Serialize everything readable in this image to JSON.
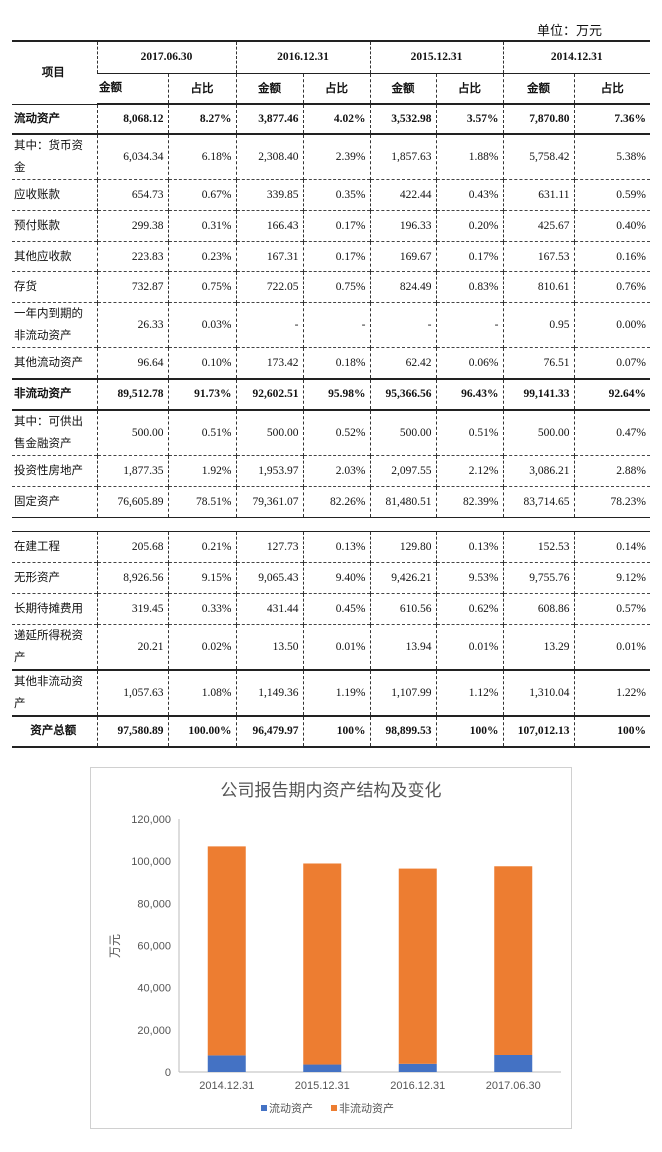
{
  "unit_label": "单位：万元",
  "table": {
    "item_header": "项目",
    "periods": [
      "2017.06.30",
      "2016.12.31",
      "2015.12.31",
      "2014.12.31"
    ],
    "sub_headers": [
      "金额",
      "占比"
    ],
    "rows": [
      {
        "label": "流动资产",
        "bold": true,
        "cells": [
          "8,068.12",
          "8.27%",
          "3,877.46",
          "4.02%",
          "3,532.98",
          "3.57%",
          "7,870.80",
          "7.36%"
        ]
      },
      {
        "label": "其中：货币资金",
        "cells": [
          "6,034.34",
          "6.18%",
          "2,308.40",
          "2.39%",
          "1,857.63",
          "1.88%",
          "5,758.42",
          "5.38%"
        ]
      },
      {
        "label": "应收账款",
        "cells": [
          "654.73",
          "0.67%",
          "339.85",
          "0.35%",
          "422.44",
          "0.43%",
          "631.11",
          "0.59%"
        ]
      },
      {
        "label": "预付账款",
        "cells": [
          "299.38",
          "0.31%",
          "166.43",
          "0.17%",
          "196.33",
          "0.20%",
          "425.67",
          "0.40%"
        ]
      },
      {
        "label": "其他应收款",
        "cells": [
          "223.83",
          "0.23%",
          "167.31",
          "0.17%",
          "169.67",
          "0.17%",
          "167.53",
          "0.16%"
        ]
      },
      {
        "label": "存货",
        "cells": [
          "732.87",
          "0.75%",
          "722.05",
          "0.75%",
          "824.49",
          "0.83%",
          "810.61",
          "0.76%"
        ]
      },
      {
        "label": "一年内到期的非流动资产",
        "cells": [
          "26.33",
          "0.03%",
          "-",
          "-",
          "-",
          "-",
          "0.95",
          "0.00%"
        ]
      },
      {
        "label": "其他流动资产",
        "cells": [
          "96.64",
          "0.10%",
          "173.42",
          "0.18%",
          "62.42",
          "0.06%",
          "76.51",
          "0.07%"
        ]
      },
      {
        "label": "非流动资产",
        "bold": true,
        "cells": [
          "89,512.78",
          "91.73%",
          "92,602.51",
          "95.98%",
          "95,366.56",
          "96.43%",
          "99,141.33",
          "92.64%"
        ]
      },
      {
        "label": "其中：可供出售金融资产",
        "cells": [
          "500.00",
          "0.51%",
          "500.00",
          "0.52%",
          "500.00",
          "0.51%",
          "500.00",
          "0.47%"
        ]
      },
      {
        "label": "投资性房地产",
        "cells": [
          "1,877.35",
          "1.92%",
          "1,953.97",
          "2.03%",
          "2,097.55",
          "2.12%",
          "3,086.21",
          "2.88%"
        ]
      },
      {
        "label": "固定资产",
        "cells": [
          "76,605.89",
          "78.51%",
          "79,361.07",
          "82.26%",
          "81,480.51",
          "82.39%",
          "83,714.65",
          "78.23%"
        ]
      },
      {
        "label": "在建工程",
        "cells": [
          "205.68",
          "0.21%",
          "127.73",
          "0.13%",
          "129.80",
          "0.13%",
          "152.53",
          "0.14%"
        ]
      },
      {
        "label": "无形资产",
        "cells": [
          "8,926.56",
          "9.15%",
          "9,065.43",
          "9.40%",
          "9,426.21",
          "9.53%",
          "9,755.76",
          "9.12%"
        ]
      },
      {
        "label": "长期待摊费用",
        "cells": [
          "319.45",
          "0.33%",
          "431.44",
          "0.45%",
          "610.56",
          "0.62%",
          "608.86",
          "0.57%"
        ]
      },
      {
        "label": "递延所得税资产",
        "cells": [
          "20.21",
          "0.02%",
          "13.50",
          "0.01%",
          "13.94",
          "0.01%",
          "13.29",
          "0.01%"
        ]
      },
      {
        "label": "其他非流动资产",
        "cells": [
          "1,057.63",
          "1.08%",
          "1,149.36",
          "1.19%",
          "1,107.99",
          "1.12%",
          "1,310.04",
          "1.22%"
        ]
      },
      {
        "label": "资产总额",
        "bold": true,
        "center": true,
        "cells": [
          "97,580.89",
          "100.00%",
          "96,479.97",
          "100%",
          "98,899.53",
          "100%",
          "107,012.13",
          "100%"
        ]
      }
    ]
  },
  "chart_data": {
    "type": "bar",
    "stacked": true,
    "title": "公司报告期内资产结构及变化",
    "ylabel": "万元",
    "xlabel": "",
    "categories": [
      "2014.12.31",
      "2015.12.31",
      "2016.12.31",
      "2017.06.30"
    ],
    "series": [
      {
        "name": "流动资产",
        "color": "#4472c4",
        "values": [
          7870.8,
          3532.98,
          3877.46,
          8068.12
        ]
      },
      {
        "name": "非流动资产",
        "color": "#ed7d31",
        "values": [
          99141.33,
          95366.56,
          92602.51,
          89512.78
        ]
      }
    ],
    "ylim": [
      0,
      120000
    ],
    "yticks": [
      "0",
      "20,000",
      "40,000",
      "60,000",
      "80,000",
      "100,000",
      "120,000"
    ],
    "grid": false,
    "legend": "bottom"
  }
}
